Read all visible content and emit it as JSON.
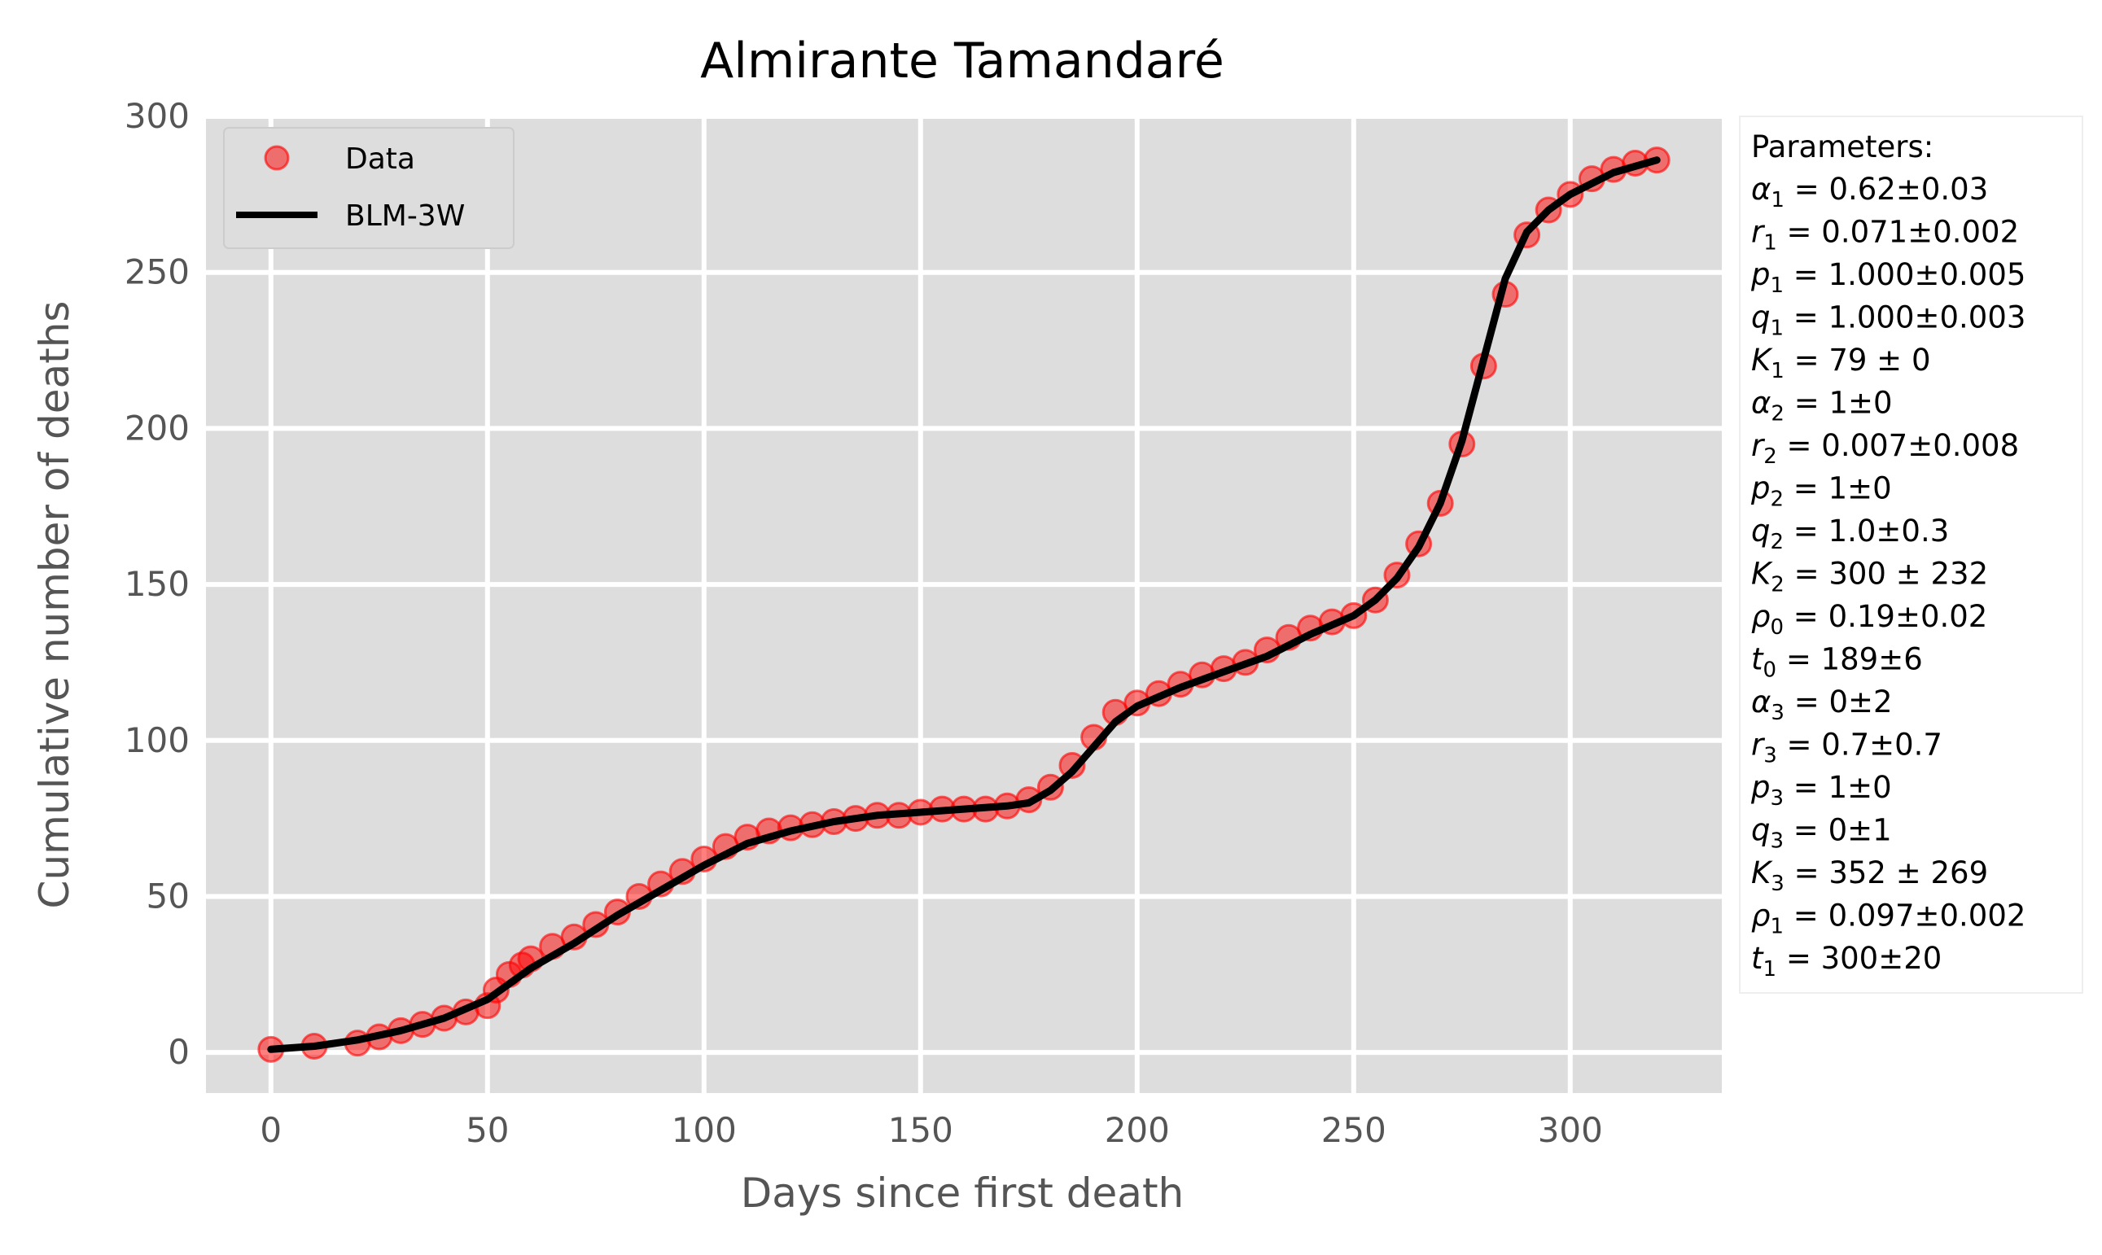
{
  "chart_data": {
    "type": "scatter",
    "title": "Almirante Tamandaré",
    "xlabel": "Days since first death",
    "ylabel": "Cumulative number of deaths",
    "xlim": [
      -15,
      335
    ],
    "ylim": [
      -13,
      300
    ],
    "xticks": [
      0,
      50,
      100,
      150,
      200,
      250,
      300
    ],
    "yticks": [
      0,
      50,
      100,
      150,
      200,
      250,
      300
    ],
    "grid": true,
    "legend_position": "upper-left",
    "colors": {
      "data": "#ff0000",
      "fit": "#000000",
      "background": "#dddddd",
      "grid": "#ffffff"
    },
    "series": [
      {
        "name": "Data",
        "kind": "markers",
        "x": [
          0,
          10,
          20,
          25,
          30,
          35,
          40,
          45,
          50,
          52,
          55,
          58,
          60,
          65,
          70,
          75,
          80,
          85,
          90,
          95,
          100,
          105,
          110,
          115,
          120,
          125,
          130,
          135,
          140,
          145,
          150,
          155,
          160,
          165,
          170,
          175,
          180,
          185,
          190,
          195,
          200,
          205,
          210,
          215,
          220,
          225,
          230,
          235,
          240,
          245,
          250,
          255,
          260,
          265,
          270,
          275,
          280,
          285,
          290,
          295,
          300,
          305,
          310,
          315,
          320
        ],
        "y": [
          1,
          2,
          3,
          5,
          7,
          9,
          11,
          13,
          15,
          20,
          25,
          28,
          30,
          34,
          37,
          41,
          45,
          50,
          54,
          58,
          62,
          66,
          69,
          71,
          72,
          73,
          74,
          75,
          76,
          76,
          77,
          78,
          78,
          78,
          79,
          81,
          85,
          92,
          101,
          109,
          112,
          115,
          118,
          121,
          123,
          125,
          129,
          133,
          136,
          138,
          140,
          145,
          153,
          163,
          176,
          195,
          220,
          243,
          262,
          270,
          275,
          280,
          283,
          285,
          286
        ]
      },
      {
        "name": "BLM-3W",
        "kind": "line",
        "x": [
          0,
          10,
          20,
          30,
          40,
          50,
          60,
          70,
          80,
          90,
          100,
          110,
          120,
          130,
          140,
          150,
          160,
          170,
          175,
          180,
          185,
          190,
          195,
          200,
          210,
          220,
          230,
          240,
          250,
          255,
          260,
          265,
          270,
          275,
          280,
          285,
          290,
          295,
          300,
          310,
          320
        ],
        "y": [
          1,
          2,
          4,
          7,
          11,
          17,
          27,
          35,
          44,
          52,
          60,
          67,
          71,
          74,
          76,
          77,
          78,
          79,
          80,
          84,
          90,
          98,
          106,
          111,
          117,
          122,
          127,
          134,
          140,
          145,
          152,
          162,
          176,
          196,
          222,
          248,
          263,
          270,
          275,
          282,
          286
        ]
      }
    ],
    "annotation": {
      "header": "Parameters:",
      "lines": [
        {
          "sym": "α",
          "sub": "1",
          "val": "= 0.62±0.03"
        },
        {
          "sym": "r",
          "sub": "1",
          "val": "= 0.071±0.002"
        },
        {
          "sym": "p",
          "sub": "1",
          "val": "= 1.000±0.005"
        },
        {
          "sym": "q",
          "sub": "1",
          "val": "= 1.000±0.003"
        },
        {
          "sym": "K",
          "sub": "1",
          "val": "= 79 ± 0"
        },
        {
          "sym": "α",
          "sub": "2",
          "val": "= 1±0"
        },
        {
          "sym": "r",
          "sub": "2",
          "val": "= 0.007±0.008"
        },
        {
          "sym": "p",
          "sub": "2",
          "val": "= 1±0"
        },
        {
          "sym": "q",
          "sub": "2",
          "val": "= 1.0±0.3"
        },
        {
          "sym": "K",
          "sub": "2",
          "val": "= 300 ± 232"
        },
        {
          "sym": "ρ",
          "sub": "0",
          "val": "= 0.19±0.02"
        },
        {
          "sym": "t",
          "sub": "0",
          "val": "= 189±6"
        },
        {
          "sym": "α",
          "sub": "3",
          "val": "= 0±2"
        },
        {
          "sym": "r",
          "sub": "3",
          "val": "= 0.7±0.7"
        },
        {
          "sym": "p",
          "sub": "3",
          "val": "= 1±0"
        },
        {
          "sym": "q",
          "sub": "3",
          "val": "= 0±1"
        },
        {
          "sym": "K",
          "sub": "3",
          "val": "= 352 ± 269"
        },
        {
          "sym": "ρ",
          "sub": "1",
          "val": "= 0.097±0.002"
        },
        {
          "sym": "t",
          "sub": "1",
          "val": "= 300±20"
        }
      ]
    }
  }
}
